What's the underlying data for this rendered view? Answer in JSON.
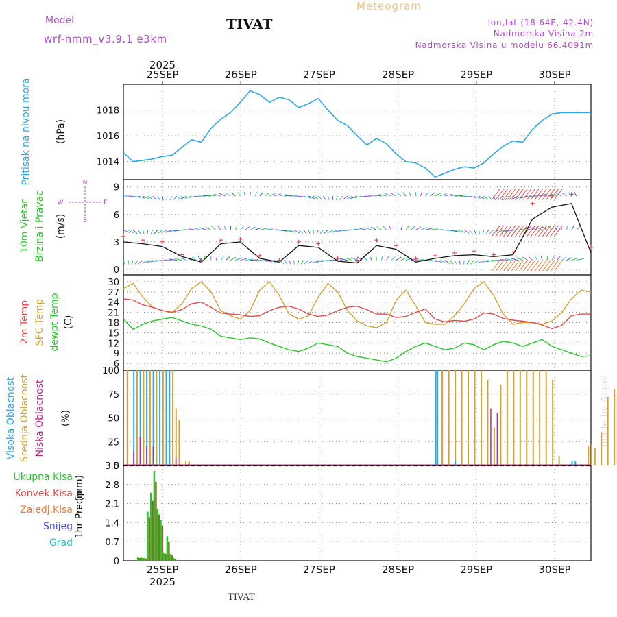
{
  "header": {
    "model_label": "Model",
    "model_name": "wrf-nmm_v3.9.1 e3km",
    "title": "TIVAT",
    "meteogram": "Meteogram",
    "coords": "lon,lat (18.64E, 42.4N)",
    "alt": "Nadmorska Visina 2m",
    "model_alt": "Nadmorska Visina u modelu 66.4091m",
    "footer": "TIVAT",
    "credit": "made by Angel",
    "year": "2025",
    "day_labels": [
      "25SEP",
      "26SEP",
      "27SEP",
      "28SEP",
      "29SEP",
      "30SEP"
    ]
  },
  "colors": {
    "pressure": "#2aa8e8",
    "wind_label": "#22cc22",
    "temp2m": "#e84848",
    "sfc": "#d8a030",
    "dew": "#22cc22",
    "visoka": "#2aa8e8",
    "srednja": "#d8a030",
    "niska": "#c8208c",
    "purple": "#b048d0"
  },
  "chart_data": [
    {
      "type": "line",
      "panel": "pressure",
      "ylabel": "Pritisak na nivou mora",
      "unit": "(hPa)",
      "ylim": [
        1012.6,
        1020.0
      ],
      "yticks": [
        1014,
        1016,
        1018
      ],
      "x_hours": [
        0,
        3,
        6,
        9,
        12,
        15,
        18,
        21,
        24,
        27,
        30,
        33,
        36,
        39,
        42,
        45,
        48,
        51,
        54,
        57,
        60,
        63,
        66,
        69,
        72,
        75,
        78,
        81,
        84,
        87,
        90,
        93,
        96,
        99,
        102,
        105,
        108,
        111,
        114,
        117,
        120,
        123,
        126,
        129,
        132,
        135,
        138,
        141,
        144
      ],
      "values": [
        1014.7,
        1014.0,
        1014.1,
        1014.2,
        1014.4,
        1014.5,
        1015.1,
        1015.7,
        1015.5,
        1016.6,
        1017.3,
        1017.8,
        1018.6,
        1019.5,
        1019.2,
        1018.6,
        1019.0,
        1018.8,
        1018.2,
        1018.5,
        1018.9,
        1018.0,
        1017.2,
        1016.8,
        1016.0,
        1015.3,
        1015.8,
        1015.4,
        1014.6,
        1014.0,
        1013.9,
        1013.5,
        1012.8,
        1013.1,
        1013.4,
        1013.6,
        1013.5,
        1013.9,
        1014.6,
        1015.2,
        1015.6,
        1015.5,
        1016.5,
        1017.2,
        1017.7,
        1017.8,
        1017.8,
        1017.8,
        1017.8
      ]
    },
    {
      "type": "line",
      "panel": "wind",
      "ylabel": "10m Vjetar",
      "ylabel2": "Brzina i Pravac",
      "unit": "(m/s)",
      "compass": [
        "N",
        "W",
        "E",
        "S"
      ],
      "ylim": [
        -0.6,
        9.8
      ],
      "yticks": [
        0,
        3,
        6,
        9
      ],
      "x_hours": [
        0,
        6,
        12,
        18,
        24,
        30,
        36,
        42,
        48,
        54,
        60,
        66,
        72,
        78,
        84,
        90,
        96,
        102,
        108,
        114,
        120,
        126,
        132,
        138,
        144
      ],
      "speed": [
        3.0,
        2.8,
        2.5,
        1.4,
        0.8,
        2.8,
        3.0,
        1.2,
        0.8,
        2.6,
        2.4,
        0.9,
        0.7,
        2.6,
        2.2,
        0.8,
        1.2,
        1.5,
        1.6,
        1.4,
        1.6,
        5.5,
        6.8,
        7.2,
        1.8
      ],
      "gust": [
        3.6,
        3.2,
        3.0,
        1.6,
        1.0,
        3.2,
        3.3,
        1.5,
        1.0,
        3.0,
        2.8,
        1.2,
        1.0,
        3.2,
        2.6,
        1.2,
        1.5,
        1.8,
        2.0,
        1.6,
        1.9,
        7.2,
        8.0,
        8.2,
        2.4
      ],
      "arrow_bands": [
        8.0,
        4.3,
        1.0
      ]
    },
    {
      "type": "line",
      "panel": "temperature",
      "ylabel": "2m Temp",
      "ylabel2": "SFC Temp",
      "ylabel3": "dewpt Temp",
      "unit": "(C)",
      "ylim": [
        4.0,
        32.0
      ],
      "yticks": [
        6,
        9,
        12,
        15,
        18,
        21,
        24,
        27,
        30
      ],
      "x_hours": [
        0,
        3,
        6,
        9,
        12,
        15,
        18,
        21,
        24,
        27,
        30,
        33,
        36,
        39,
        42,
        45,
        48,
        51,
        54,
        57,
        60,
        63,
        66,
        69,
        72,
        75,
        78,
        81,
        84,
        87,
        90,
        93,
        96,
        99,
        102,
        105,
        108,
        111,
        114,
        117,
        120,
        123,
        126,
        129,
        132,
        135,
        138,
        141,
        144
      ],
      "temp2m": [
        25.0,
        24.6,
        23.2,
        22.5,
        21.5,
        21.0,
        21.8,
        23.5,
        24.0,
        22.5,
        20.8,
        20.5,
        20.3,
        19.8,
        20.0,
        21.5,
        22.5,
        22.8,
        22.0,
        20.5,
        19.8,
        20.2,
        21.5,
        22.5,
        22.8,
        21.8,
        20.5,
        20.5,
        19.5,
        19.8,
        21.0,
        22.0,
        19.0,
        18.2,
        18.6,
        18.4,
        19.0,
        20.8,
        20.5,
        19.2,
        18.7,
        18.4,
        18.0,
        17.3,
        16.2,
        17.2,
        20.0,
        20.5,
        20.5
      ],
      "sfc": [
        28.0,
        29.5,
        25.5,
        22.5,
        21.5,
        21.0,
        23.5,
        28.0,
        30.0,
        27.0,
        21.5,
        20.0,
        19.0,
        21.5,
        27.5,
        30.0,
        26.0,
        20.5,
        19.0,
        20.0,
        25.5,
        29.5,
        27.0,
        21.5,
        18.5,
        17.0,
        16.5,
        18.0,
        24.5,
        27.5,
        23.0,
        18.0,
        17.5,
        17.5,
        20.0,
        23.5,
        28.0,
        30.0,
        26.0,
        20.5,
        17.5,
        18.0,
        18.0,
        17.5,
        18.5,
        21.0,
        25.0,
        27.5,
        27.0
      ],
      "dew": [
        19.0,
        16.0,
        17.5,
        18.5,
        19.0,
        19.5,
        18.5,
        17.5,
        17.0,
        16.0,
        14.0,
        13.5,
        13.0,
        13.5,
        13.2,
        12.0,
        11.0,
        10.0,
        9.5,
        10.5,
        12.0,
        11.5,
        11.0,
        9.0,
        8.0,
        7.5,
        7.0,
        6.5,
        7.5,
        9.5,
        11.0,
        12.0,
        11.0,
        10.0,
        10.5,
        12.0,
        11.5,
        10.0,
        11.5,
        12.5,
        12.0,
        11.0,
        12.0,
        13.0,
        11.0,
        10.0,
        9.0,
        8.0,
        8.2
      ]
    },
    {
      "type": "bar",
      "panel": "cloud",
      "ylabel": "Visoka Oblacnost",
      "ylabel2": "Srednja Oblacnost",
      "ylabel3": "Niska Oblacnost",
      "unit": "(%)",
      "ylim": [
        0,
        100
      ],
      "yticks": [
        0,
        25,
        50,
        75,
        100
      ],
      "visoka": [
        [
          3,
          100
        ],
        [
          5,
          100
        ],
        [
          7,
          100
        ],
        [
          9,
          100
        ],
        [
          11,
          100
        ],
        [
          13,
          100
        ],
        [
          14,
          100
        ],
        [
          96,
          100
        ],
        [
          96.5,
          100
        ],
        [
          102,
          5
        ],
        [
          138,
          5
        ],
        [
          139,
          5
        ]
      ],
      "srednja": [
        [
          1,
          100
        ],
        [
          4,
          100
        ],
        [
          6,
          100
        ],
        [
          8,
          100
        ],
        [
          10,
          100
        ],
        [
          12,
          100
        ],
        [
          15,
          100
        ],
        [
          16,
          60
        ],
        [
          17,
          48
        ],
        [
          19,
          5
        ],
        [
          20,
          5
        ],
        [
          98,
          100
        ],
        [
          100,
          100
        ],
        [
          102,
          100
        ],
        [
          104,
          100
        ],
        [
          106,
          100
        ],
        [
          108,
          100
        ],
        [
          110,
          100
        ],
        [
          112,
          90
        ],
        [
          114,
          40
        ],
        [
          116,
          85
        ],
        [
          118,
          100
        ],
        [
          120,
          100
        ],
        [
          122,
          100
        ],
        [
          124,
          100
        ],
        [
          126,
          100
        ],
        [
          128,
          100
        ],
        [
          130,
          100
        ],
        [
          132,
          90
        ],
        [
          134,
          10
        ],
        [
          143,
          20
        ],
        [
          144,
          22
        ],
        [
          145,
          18
        ],
        [
          147,
          35
        ],
        [
          149,
          72
        ],
        [
          151,
          80
        ],
        [
          153,
          85
        ],
        [
          154,
          60
        ]
      ],
      "niska": [
        [
          3,
          15
        ],
        [
          5,
          30
        ],
        [
          7,
          20
        ],
        [
          9,
          20
        ],
        [
          16,
          8
        ],
        [
          20,
          2
        ],
        [
          113,
          60
        ],
        [
          115,
          55
        ],
        [
          152,
          75
        ],
        [
          156,
          60
        ],
        [
          163,
          60
        ]
      ]
    },
    {
      "type": "bar",
      "panel": "precip",
      "ylabel": "1hr Precip",
      "unit": "(mm)",
      "legend": [
        "Ukupna Kisa",
        "Konvek.Kisa",
        "Zaledj.Kisa",
        "Snijeg",
        "Grad"
      ],
      "legend_colors": [
        "#22cc22",
        "#e84848",
        "#f07830",
        "#4848e0",
        "#20c8c8"
      ],
      "ylim": [
        0,
        3.5
      ],
      "yticks": [
        0,
        0.7,
        1.4,
        2.1,
        2.8,
        3.5
      ],
      "x_hours": [
        0,
        1,
        2,
        3,
        4,
        5,
        6,
        7,
        8,
        9,
        10,
        11,
        12,
        13,
        14,
        15
      ],
      "ukupna": [
        0.15,
        0.12,
        0.1,
        1.8,
        2.5,
        3.3,
        1.9,
        1.5,
        0.3,
        0.9,
        0.25,
        0.1,
        0,
        0,
        0,
        0
      ],
      "konvek": [
        0.1,
        0.1,
        0.08,
        1.6,
        2.2,
        2.9,
        1.7,
        1.3,
        0.25,
        0.7,
        0.2,
        0.05,
        0,
        0,
        0,
        0
      ]
    }
  ]
}
